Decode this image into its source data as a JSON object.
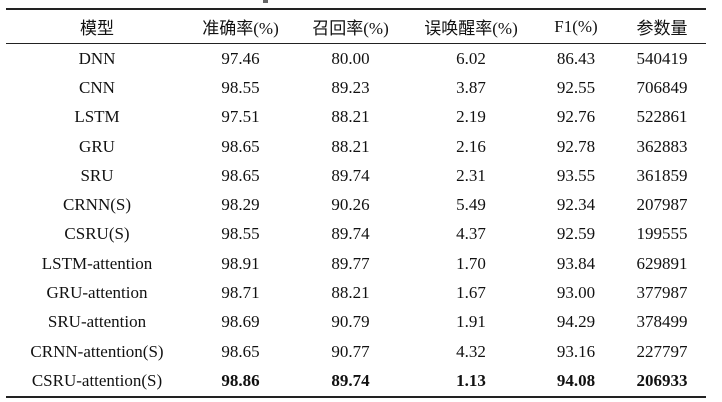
{
  "table": {
    "headers": [
      "模型",
      "准确率(%)",
      "召回率(%)",
      "误唤醒率(%)",
      "F1(%)",
      "参数量"
    ],
    "rows": [
      [
        "DNN",
        "97.46",
        "80.00",
        "6.02",
        "86.43",
        "540419"
      ],
      [
        "CNN",
        "98.55",
        "89.23",
        "3.87",
        "92.55",
        "706849"
      ],
      [
        "LSTM",
        "97.51",
        "88.21",
        "2.19",
        "92.76",
        "522861"
      ],
      [
        "GRU",
        "98.65",
        "88.21",
        "2.16",
        "92.78",
        "362883"
      ],
      [
        "SRU",
        "98.65",
        "89.74",
        "2.31",
        "93.55",
        "361859"
      ],
      [
        "CRNN(S)",
        "98.29",
        "90.26",
        "5.49",
        "92.34",
        "207987"
      ],
      [
        "CSRU(S)",
        "98.55",
        "89.74",
        "4.37",
        "92.59",
        "199555"
      ],
      [
        "LSTM-attention",
        "98.91",
        "89.77",
        "1.70",
        "93.84",
        "629891"
      ],
      [
        "GRU-attention",
        "98.71",
        "88.21",
        "1.67",
        "93.00",
        "377987"
      ],
      [
        "SRU-attention",
        "98.69",
        "90.79",
        "1.91",
        "94.29",
        "378499"
      ],
      [
        "CRNN-attention(S)",
        "98.65",
        "90.77",
        "4.32",
        "93.16",
        "227797"
      ],
      [
        "CSRU-attention(S)",
        "98.86",
        "89.74",
        "1.13",
        "94.08",
        "206933"
      ]
    ],
    "bold_row_index": 11
  }
}
